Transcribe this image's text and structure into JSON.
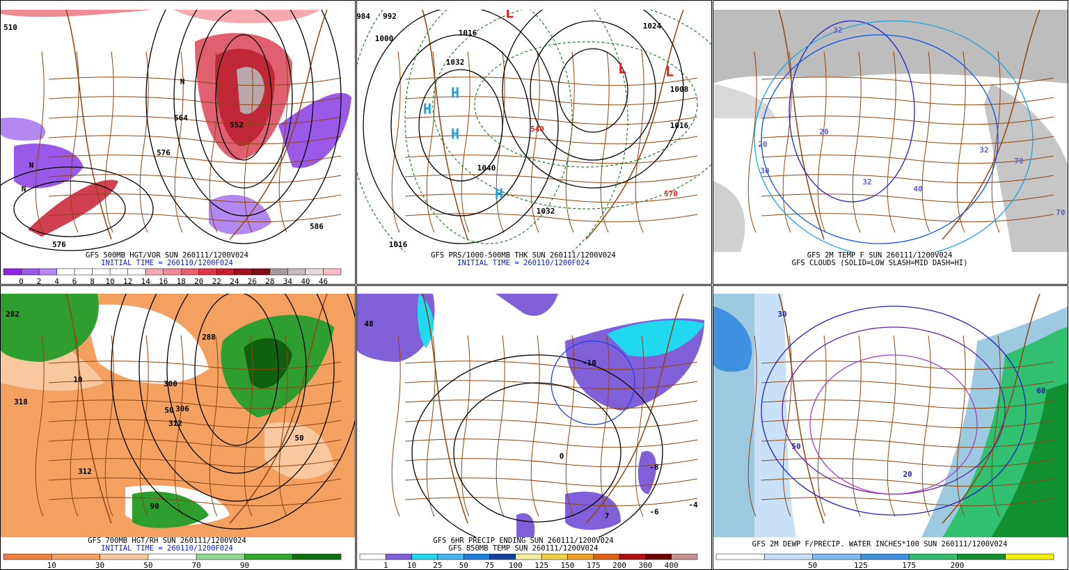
{
  "panels": [
    {
      "caption": [
        "GFS 500MB HGT/VOR SUN 260111/1200V024",
        "INITIAL TIME = 260110/1200F024"
      ],
      "colorbar": {
        "colors": [
          "#8a2be2",
          "#9b59e8",
          "#b388f0",
          "#ffffff",
          "#ffffff",
          "#ffffff",
          "#ffffff",
          "#ffffff",
          "#f7a8b0",
          "#f08a94",
          "#e86070",
          "#d83a4c",
          "#c02030",
          "#a01020",
          "#801018",
          "#a89a9e",
          "#c8bcc0",
          "#e8dadc",
          "#f8c0c8"
        ],
        "labels": [
          "0",
          "2",
          "4",
          "6",
          "8",
          "10",
          "12",
          "14",
          "16",
          "18",
          "20",
          "22",
          "24",
          "26",
          "28",
          "34",
          "40",
          "46"
        ]
      },
      "labels": [
        "510",
        "564",
        "576",
        "552",
        "576",
        "586",
        "N",
        "N",
        "N"
      ]
    },
    {
      "caption": [
        "GFS PRS/1000-500MB THK SUN 260111/1200V024",
        "INITIAL TIME = 260110/1200F024"
      ],
      "labels": [
        "984",
        "992",
        "1000",
        "1016",
        "1032",
        "1040",
        "1032",
        "1016",
        "1008",
        "1024",
        "1016",
        "H",
        "H",
        "H",
        "H",
        "L",
        "L",
        "L",
        "540",
        "570"
      ]
    },
    {
      "caption": [
        "GFS 2M TEMP F SUN 260111/1200V024",
        "GFS CLOUDS (SOLID=LOW SLASH=MID DASH=HI)"
      ],
      "labels": [
        "32",
        "20",
        "32",
        "40",
        "20",
        "32",
        "70",
        "70",
        "30"
      ]
    },
    {
      "caption": [
        "GFS 700MB HGT/RH SUN 260111/1200V024",
        "INITIAL TIME = 260110/1200F024"
      ],
      "colorbar": {
        "colors": [
          "#f08040",
          "#f4a060",
          "#f8c8a0",
          "#ffffff",
          "#90d890",
          "#30a830",
          "#107010"
        ],
        "labels": [
          "10",
          "30",
          "50",
          "70",
          "90"
        ]
      },
      "labels": [
        "282",
        "288",
        "300",
        "306",
        "312",
        "318",
        "312",
        "10",
        "50",
        "50",
        "90"
      ]
    },
    {
      "caption": [
        "GFS 6HR PRECIP ENDING SUN 260111/1200V024",
        "GFS 850MB TEMP SUN 260111/1200V024"
      ],
      "colorbar": {
        "colors": [
          "#ffffff",
          "#8060d8",
          "#20d8f0",
          "#40b8f0",
          "#2080e0",
          "#1040a0",
          "#f0f0a0",
          "#f0d040",
          "#f0a020",
          "#e06010",
          "#b01010",
          "#700000",
          "#c89090"
        ],
        "labels": [
          "1",
          "10",
          "25",
          "50",
          "75",
          "100",
          "125",
          "150",
          "175",
          "200",
          "300",
          "400"
        ]
      },
      "labels": [
        "48",
        "-10",
        "0",
        "-8",
        "7",
        "-6",
        "-4"
      ]
    },
    {
      "caption": [
        "GFS 2M DEWP F/PRECIP. WATER INCHES*100 SUN 260111/1200V024"
      ],
      "colorbar": {
        "colors": [
          "#ffffff",
          "#c8e0f8",
          "#80b8f0",
          "#4090e0",
          "#30c070",
          "#109030",
          "#f0f000"
        ],
        "labels": [
          "50",
          "125",
          "175",
          "200"
        ]
      },
      "labels": [
        "30",
        "50",
        "20",
        "60"
      ]
    }
  ]
}
